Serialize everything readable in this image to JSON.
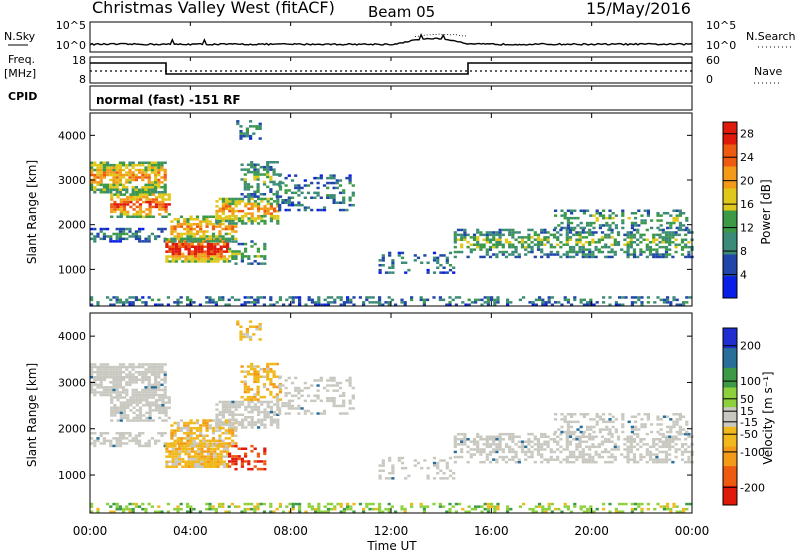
{
  "header": {
    "station": "Christmas Valley West (fitACF)",
    "beam": "Beam 05",
    "date": "15/May/2016"
  },
  "panels": {
    "nsky_label": "N.Sky",
    "nsky_ticks": [
      "10^5",
      "10^0"
    ],
    "nsearch_label": "N.Search",
    "nsearch_ticks": [
      "10^5",
      "10^0"
    ],
    "freq_label": "Freq.",
    "freq_unit": "[MHz]",
    "freq_ticks": [
      "18",
      "8"
    ],
    "nave_label": "Nave",
    "nave_ticks": [
      "60",
      "0"
    ],
    "cpid_label": "CPID",
    "cpid_text": "normal (fast) -151 RF"
  },
  "chart_data": [
    {
      "type": "heatmap",
      "name": "power",
      "ylabel": "Slant Range [km]",
      "yticks": [
        "4000",
        "3000",
        "2000",
        "1000"
      ],
      "colorbar_label": "Power [dB]",
      "colorbar_ticks": [
        "28",
        "24",
        "20",
        "16",
        "12",
        "8",
        "4"
      ],
      "colorbar_range": [
        0,
        30
      ],
      "colors": [
        "#0a1fe6",
        "#1f46a8",
        "#3c8b78",
        "#3c9a46",
        "#e0c81a",
        "#f39a16",
        "#ee5a10",
        "#e01a0a"
      ]
    },
    {
      "type": "heatmap",
      "name": "velocity",
      "ylabel": "Slant Range [km]",
      "yticks": [
        "4000",
        "3000",
        "2000",
        "1000"
      ],
      "colorbar_label": "Velocity [m s⁻¹]",
      "colorbar_ticks": [
        "200",
        "100",
        "50",
        "15",
        "-15",
        "-50",
        "-100",
        "-200"
      ],
      "colorbar_range": [
        -250,
        250
      ],
      "colors": [
        "#e01a0a",
        "#ee5a10",
        "#f39a16",
        "#f0b81a",
        "#c8c8c0",
        "#8cd03c",
        "#3c9a46",
        "#2a6e9a",
        "#1f2ed0"
      ],
      "xticks": [
        "00:00",
        "04:00",
        "08:00",
        "12:00",
        "16:00",
        "20:00",
        "00:00"
      ],
      "xlabel": "Time UT"
    }
  ]
}
